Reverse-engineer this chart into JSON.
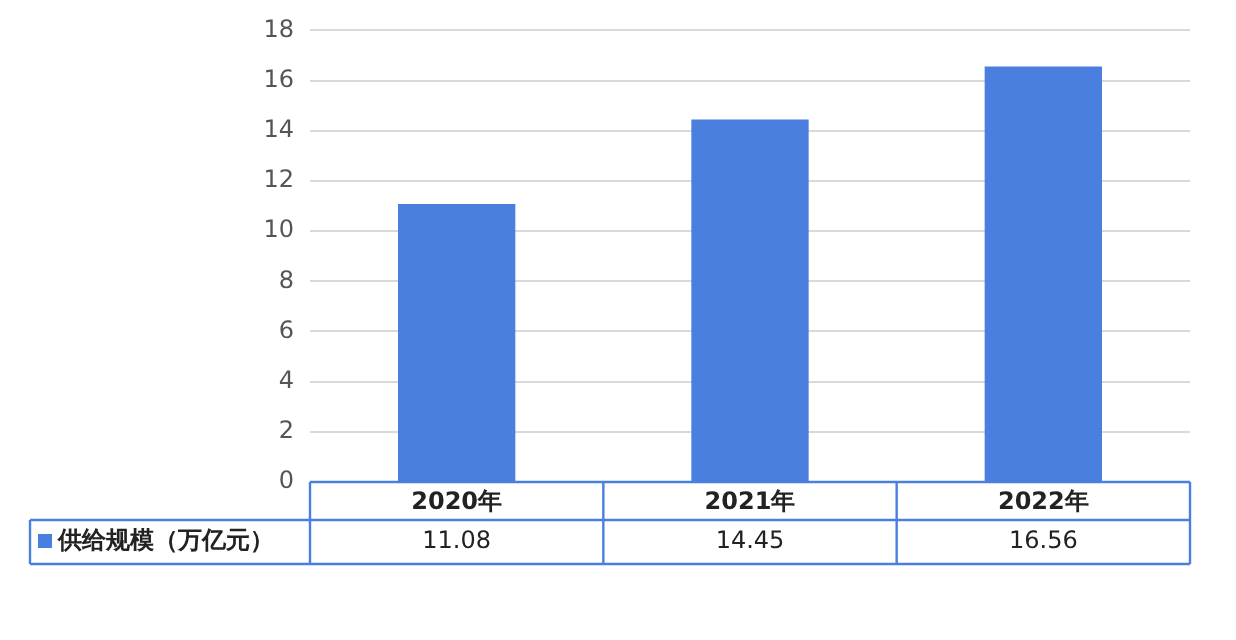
{
  "chart_data": {
    "type": "bar",
    "categories": [
      "2020年",
      "2021年",
      "2022年"
    ],
    "series": [
      {
        "name": "供给规模（万亿元）",
        "color": "#4a7fe0",
        "values": [
          11.08,
          14.45,
          16.56
        ]
      }
    ],
    "ylim": [
      0,
      18
    ],
    "yticks": [
      0,
      2,
      4,
      6,
      8,
      10,
      12,
      14,
      16,
      18
    ],
    "grid": "y",
    "data_labels": true,
    "legend": "bottom left"
  }
}
